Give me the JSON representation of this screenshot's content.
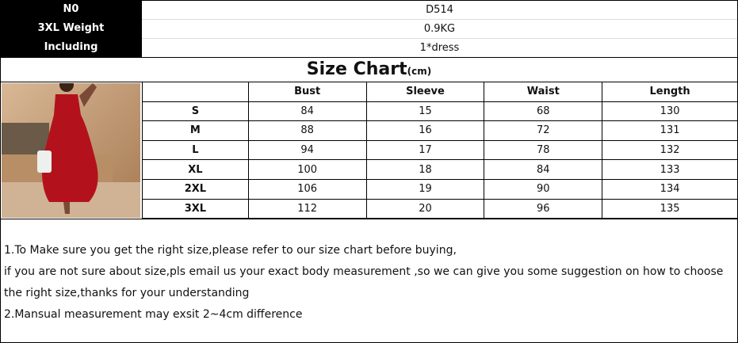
{
  "info": {
    "labels": [
      "N0",
      "3XL Weight",
      "Including"
    ],
    "values": [
      "D514",
      "0.9KG",
      "1*dress"
    ]
  },
  "title": {
    "main": "Size Chart",
    "unit": "(cm)"
  },
  "table": {
    "headers": [
      "",
      "Bust",
      "Sleeve",
      "Waist",
      "Length"
    ],
    "rows": [
      [
        "S",
        "84",
        "15",
        "68",
        "130"
      ],
      [
        "M",
        "88",
        "16",
        "72",
        "131"
      ],
      [
        "L",
        "94",
        "17",
        "78",
        "132"
      ],
      [
        "XL",
        "100",
        "18",
        "84",
        "133"
      ],
      [
        "2XL",
        "106",
        "19",
        "90",
        "134"
      ],
      [
        "3XL",
        "112",
        "20",
        "96",
        "135"
      ]
    ]
  },
  "notes": [
    "1.To Make sure you get the right size,please refer to our size chart before buying,",
    "if you are not sure about size,pls email us your exact body measurement ,so we can give you some suggestion on how to choose",
    "the right size,thanks for your understanding",
    "2.Mansual measurement may exsit 2~4cm difference"
  ],
  "colors": {
    "dress": "#b3121c",
    "background": "#c9a27c"
  }
}
